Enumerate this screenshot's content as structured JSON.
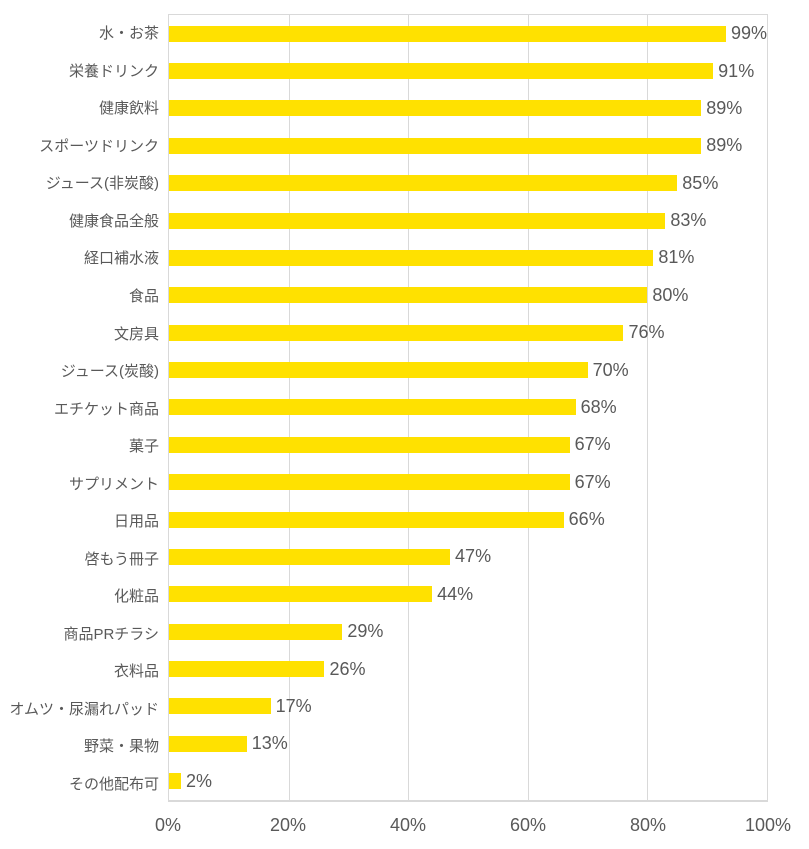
{
  "chart_data": {
    "type": "bar",
    "orientation": "horizontal",
    "title": "",
    "legend": false,
    "grid": true,
    "categories": [
      "水・お茶",
      "栄養ドリンク",
      "健康飲料",
      "スポーツドリンク",
      "ジュース(非炭酸)",
      "健康食品全般",
      "経口補水液",
      "食品",
      "文房具",
      "ジュース(炭酸)",
      "エチケット商品",
      "菓子",
      "サプリメント",
      "日用品",
      "啓もう冊子",
      "化粧品",
      "商品PRチラシ",
      "衣料品",
      "オムツ・尿漏れパッド",
      "野菜・果物",
      "その他配布可"
    ],
    "values": [
      99,
      91,
      89,
      89,
      85,
      83,
      81,
      80,
      76,
      70,
      68,
      67,
      67,
      66,
      47,
      44,
      29,
      26,
      17,
      13,
      2
    ],
    "value_suffix": "%",
    "x_axis": {
      "min": 0,
      "max": 100,
      "ticks": [
        "0%",
        "20%",
        "40%",
        "60%",
        "80%",
        "100%"
      ],
      "gridlines_at": [
        20,
        40,
        60,
        80
      ]
    },
    "colors": {
      "bar": "#FFE100",
      "text": "#595959",
      "grid": "#D9D9D9",
      "background": "#FFFFFF"
    }
  }
}
